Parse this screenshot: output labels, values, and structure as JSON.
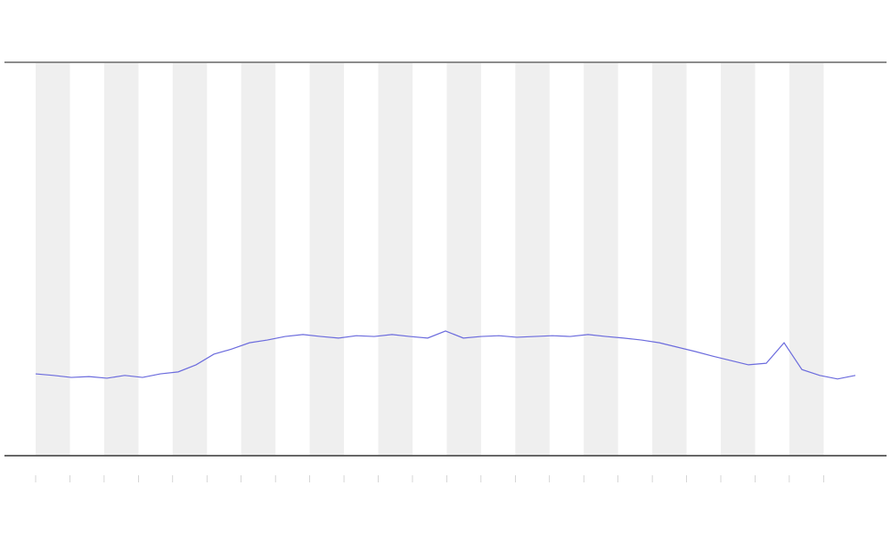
{
  "chart_data": {
    "type": "line",
    "x": [
      0,
      1,
      2,
      3,
      4,
      5,
      6,
      7,
      8,
      9,
      10,
      11,
      12,
      13,
      14,
      15,
      16,
      17,
      18,
      19,
      20,
      21,
      22,
      23,
      24,
      25,
      26,
      27,
      28,
      29,
      30,
      31,
      32,
      33,
      34,
      35,
      36,
      37,
      38,
      39,
      40,
      41,
      42,
      43,
      44,
      45,
      46
    ],
    "series": [
      {
        "color": "#6b6bdd",
        "values": [
          20.8,
          20.4,
          19.9,
          20.1,
          19.7,
          20.4,
          19.9,
          20.8,
          21.3,
          23.1,
          25.8,
          27.1,
          28.7,
          29.4,
          30.3,
          30.8,
          30.3,
          29.9,
          30.5,
          30.3,
          30.8,
          30.3,
          29.9,
          31.7,
          29.9,
          30.3,
          30.5,
          30.1,
          30.3,
          30.5,
          30.3,
          30.8,
          30.3,
          29.9,
          29.4,
          28.7,
          27.6,
          26.5,
          25.3,
          24.2,
          23.1,
          23.5,
          28.7,
          21.9,
          20.4,
          19.5,
          20.4
        ]
      }
    ],
    "xlim": [
      -1.75,
      47.75
    ],
    "ylim": [
      0,
      100
    ]
  }
}
